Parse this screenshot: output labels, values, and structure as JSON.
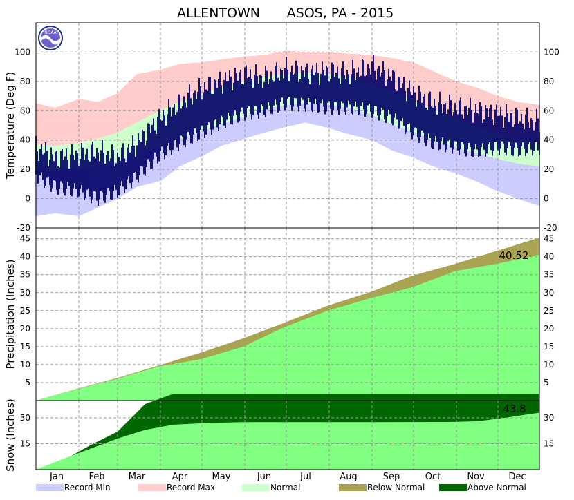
{
  "chart_data": {
    "type": "area",
    "title_left": "ALLENTOWN",
    "title_right": "ASOS, PA - 2015",
    "logo_text": "NOAA",
    "months": [
      "Jan",
      "Feb",
      "Mar",
      "Apr",
      "May",
      "Jun",
      "Jul",
      "Aug",
      "Sep",
      "Oct",
      "Nov",
      "Dec"
    ],
    "colors": {
      "record_min": "#ccccff",
      "record_max": "#ffcccc",
      "normal": "#ccffcc",
      "observed_temp": "#000066",
      "below_normal": "#a9a352",
      "above_normal": "#006600",
      "observed_fill": "#80ff80",
      "grid": "#999999"
    },
    "legend": [
      {
        "label": "Record Min",
        "color": "#ccccff"
      },
      {
        "label": "Record Max",
        "color": "#ffcccc"
      },
      {
        "label": "Normal",
        "color": "#ccffcc"
      },
      {
        "label": "Below Normal",
        "color": "#a9a352"
      },
      {
        "label": "Above Normal",
        "color": "#006600"
      }
    ],
    "panels": {
      "temperature": {
        "ylabel": "Temperature (Deg F)",
        "ylim": [
          -20,
          120
        ],
        "ticks": [
          -20,
          0,
          20,
          40,
          60,
          80,
          100
        ],
        "days": [
          1,
          15,
          32,
          46,
          60,
          74,
          91,
          105,
          121,
          135,
          152,
          166,
          182,
          196,
          213,
          227,
          244,
          258,
          274,
          288,
          305,
          319,
          335,
          349,
          365
        ],
        "record_max": [
          65,
          62,
          68,
          66,
          72,
          85,
          88,
          92,
          93,
          95,
          97,
          98,
          101,
          100,
          100,
          99,
          98,
          96,
          93,
          87,
          80,
          76,
          70,
          66,
          64
        ],
        "record_min": [
          -12,
          -10,
          -12,
          -6,
          0,
          8,
          12,
          22,
          29,
          36,
          41,
          45,
          49,
          52,
          48,
          44,
          40,
          33,
          28,
          22,
          17,
          12,
          5,
          0,
          -5
        ],
        "normal_high": [
          37,
          36,
          38,
          41,
          45,
          52,
          60,
          66,
          71,
          76,
          80,
          83,
          85,
          86,
          85,
          83,
          78,
          73,
          67,
          61,
          55,
          49,
          44,
          40,
          38
        ],
        "normal_low": [
          20,
          19,
          20,
          22,
          25,
          30,
          36,
          41,
          46,
          51,
          56,
          61,
          64,
          65,
          64,
          62,
          57,
          51,
          45,
          40,
          35,
          31,
          27,
          24,
          22
        ],
        "observed_high": [
          35,
          28,
          30,
          32,
          28,
          38,
          55,
          65,
          75,
          80,
          85,
          82,
          88,
          86,
          87,
          85,
          90,
          83,
          72,
          65,
          62,
          60,
          58,
          55,
          52
        ],
        "observed_low": [
          15,
          8,
          5,
          0,
          5,
          15,
          30,
          38,
          45,
          52,
          58,
          60,
          65,
          64,
          62,
          62,
          60,
          55,
          45,
          38,
          35,
          32,
          35,
          33,
          35
        ]
      },
      "precipitation": {
        "ylabel": "Precipitation (Inches)",
        "ylim": [
          0,
          48
        ],
        "ticks": [
          5,
          10,
          15,
          20,
          25,
          30,
          35,
          40,
          45
        ],
        "days": [
          1,
          31,
          59,
          90,
          120,
          151,
          181,
          212,
          243,
          273,
          304,
          334,
          365
        ],
        "normal": [
          0,
          3.3,
          6.2,
          9.8,
          13.3,
          17.3,
          21.7,
          26.4,
          30.2,
          34.7,
          38.0,
          41.6,
          45.3
        ],
        "observed": [
          0,
          3.2,
          6.0,
          9.5,
          11.5,
          15.0,
          20.5,
          25.0,
          28.5,
          31.5,
          36.0,
          38.0,
          40.52
        ],
        "annotation": "40.52"
      },
      "snow": {
        "ylabel": "Snow (Inches)",
        "ylim": [
          0,
          40
        ],
        "ticks": [
          15,
          30
        ],
        "days": [
          1,
          20,
          40,
          60,
          80,
          100,
          125,
          150,
          200,
          250,
          300,
          320,
          340,
          365
        ],
        "normal": [
          0,
          6,
          12,
          18,
          23,
          26,
          27,
          27.5,
          27.5,
          27.5,
          27.6,
          28,
          30,
          33
        ],
        "observed": [
          0,
          5,
          14,
          22,
          38,
          43.8,
          43.8,
          43.8,
          43.8,
          43.8,
          43.8,
          43.8,
          43.8,
          43.8
        ],
        "annotation": "43.8"
      }
    }
  }
}
